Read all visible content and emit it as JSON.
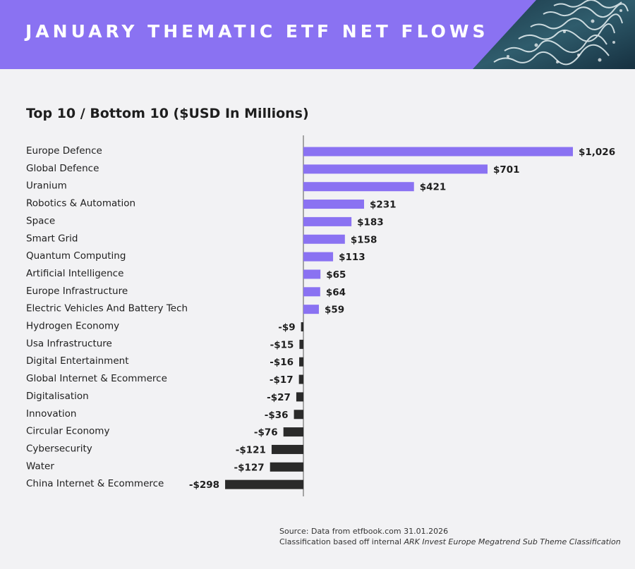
{
  "header": {
    "title": "JANUARY THEMATIC ETF NET FLOWS"
  },
  "colors": {
    "banner": "#8a72f2",
    "positive": "#8a72f2",
    "negative": "#2a2a2a",
    "background": "#f2f2f4"
  },
  "chart_data": {
    "type": "bar",
    "orientation": "horizontal",
    "title": "Top 10 / Bottom 10 ($USD In Millions)",
    "categories": [
      "Europe Defence",
      "Global Defence",
      "Uranium",
      "Robotics & Automation",
      "Space",
      "Smart Grid",
      "Quantum Computing",
      "Artificial Intelligence",
      "Europe Infrastructure",
      "Electric Vehicles And Battery Tech",
      "Hydrogen Economy",
      "Usa Infrastructure",
      "Digital Entertainment",
      "Global Internet & Ecommerce",
      "Digitalisation",
      "Innovation",
      "Circular Economy",
      "Cybersecurity",
      "Water",
      "China Internet & Ecommerce"
    ],
    "values": [
      1026,
      701,
      421,
      231,
      183,
      158,
      113,
      65,
      64,
      59,
      -9,
      -15,
      -16,
      -17,
      -27,
      -36,
      -76,
      -121,
      -127,
      -298
    ],
    "value_labels": [
      "$1,026",
      "$701",
      "$421",
      "$231",
      "$183",
      "$158",
      "$113",
      "$65",
      "$64",
      "$59",
      "-$9",
      "-$15",
      "-$16",
      "-$17",
      "-$27",
      "-$36",
      "-$76",
      "-$121",
      "-$127",
      "-$298"
    ],
    "legend": "none",
    "grid": false
  },
  "footer": {
    "source_line": "Source: Data from etfbook.com 31.01.2026",
    "classification_prefix": "Classification based off internal ",
    "classification_emphasis": "ARK Invest Europe Megatrend Sub Theme Classification"
  }
}
